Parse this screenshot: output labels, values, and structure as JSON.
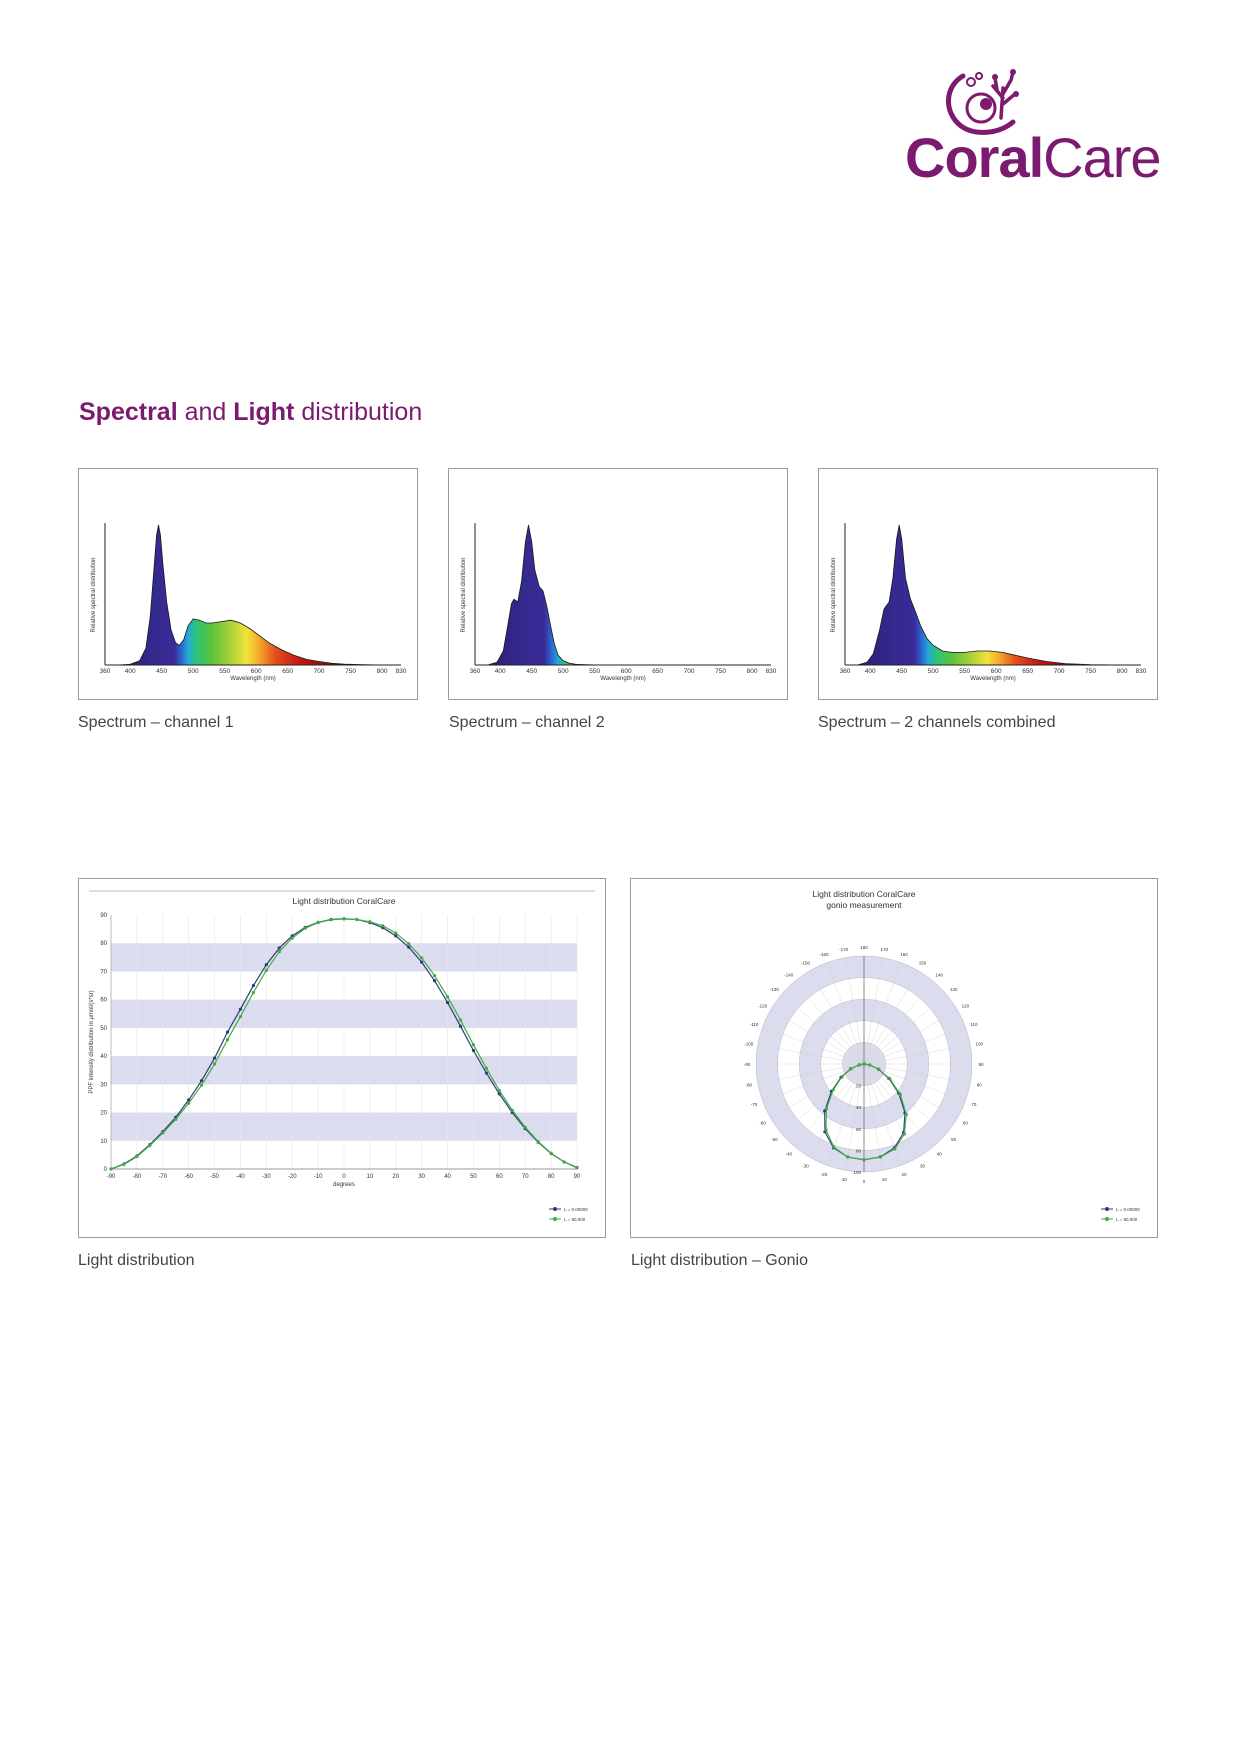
{
  "brand": {
    "name_bold": "Coral",
    "name_light": "Care"
  },
  "section": {
    "title_part1": "Spectral",
    "title_part2": " and ",
    "title_part3": "Light",
    "title_part4": " distribution"
  },
  "colors": {
    "brand_purple": "#7b1a6e",
    "spectrum_blue": "#3a2a8c",
    "band": "#dcdcef",
    "curve_blue": "#2d3c7a",
    "curve_green": "#3fae3f"
  },
  "chart_data": [
    {
      "type": "area",
      "caption": "Spectrum – channel 1",
      "ylabel": "Relative spectral distribution",
      "xlabel": "Wavelength (nm)",
      "xticks": [
        "360",
        "400",
        "450",
        "500",
        "550",
        "600",
        "650",
        "700",
        "750",
        "800",
        "830"
      ],
      "xlim": [
        360,
        830
      ],
      "ylim": [
        0,
        1
      ],
      "x": [
        380,
        400,
        415,
        425,
        432,
        438,
        442,
        445,
        448,
        452,
        458,
        465,
        472,
        478,
        485,
        492,
        500,
        510,
        520,
        530,
        545,
        560,
        575,
        590,
        605,
        620,
        640,
        660,
        680,
        700,
        720,
        740,
        770,
        800
      ],
      "values": [
        0,
        0.005,
        0.03,
        0.12,
        0.35,
        0.7,
        0.93,
        1.0,
        0.93,
        0.72,
        0.45,
        0.25,
        0.16,
        0.14,
        0.18,
        0.28,
        0.33,
        0.32,
        0.3,
        0.3,
        0.31,
        0.32,
        0.3,
        0.26,
        0.21,
        0.16,
        0.11,
        0.07,
        0.04,
        0.025,
        0.012,
        0.006,
        0.002,
        0
      ]
    },
    {
      "type": "area",
      "caption": "Spectrum – channel 2",
      "ylabel": "Relative spectral distribution",
      "xlabel": "Wavelength (nm)",
      "xticks": [
        "360",
        "400",
        "450",
        "500",
        "550",
        "600",
        "650",
        "700",
        "750",
        "800",
        "830"
      ],
      "xlim": [
        360,
        830
      ],
      "ylim": [
        0,
        1
      ],
      "x": [
        380,
        395,
        405,
        412,
        418,
        422,
        428,
        434,
        440,
        445,
        450,
        455,
        462,
        468,
        474,
        480,
        486,
        492,
        500,
        510,
        520,
        535,
        550,
        570
      ],
      "values": [
        0,
        0.02,
        0.1,
        0.28,
        0.44,
        0.47,
        0.45,
        0.6,
        0.88,
        1.0,
        0.88,
        0.68,
        0.56,
        0.53,
        0.42,
        0.28,
        0.15,
        0.07,
        0.03,
        0.012,
        0.005,
        0.002,
        0.001,
        0
      ]
    },
    {
      "type": "area",
      "caption": "Spectrum – 2 channels combined",
      "ylabel": "Relative spectral distribution",
      "xlabel": "Wavelength (nm)",
      "xticks": [
        "360",
        "400",
        "450",
        "500",
        "550",
        "600",
        "650",
        "700",
        "750",
        "800",
        "830"
      ],
      "xlim": [
        360,
        830
      ],
      "ylim": [
        0,
        1
      ],
      "x": [
        380,
        395,
        405,
        415,
        422,
        430,
        436,
        442,
        446,
        450,
        456,
        464,
        472,
        480,
        490,
        500,
        515,
        530,
        550,
        570,
        590,
        610,
        630,
        650,
        680,
        710,
        750,
        800
      ],
      "values": [
        0,
        0.02,
        0.08,
        0.25,
        0.4,
        0.45,
        0.62,
        0.9,
        1.0,
        0.9,
        0.62,
        0.47,
        0.38,
        0.28,
        0.19,
        0.14,
        0.1,
        0.09,
        0.09,
        0.1,
        0.1,
        0.09,
        0.07,
        0.05,
        0.025,
        0.01,
        0.003,
        0
      ]
    },
    {
      "type": "line",
      "caption": "Light distribution",
      "title": "Light distribution CoralCare",
      "xlabel": "degrees",
      "ylabel": "PPF intensity distribution in µmol/(s*sr)",
      "xlim": [
        -90,
        90
      ],
      "ylim": [
        0,
        90
      ],
      "xticks": [
        "-90",
        "-80",
        "-70",
        "-60",
        "-50",
        "-40",
        "-30",
        "-20",
        "-10",
        "0",
        "10",
        "20",
        "30",
        "40",
        "50",
        "60",
        "70",
        "80",
        "90"
      ],
      "yticks": [
        "0",
        "10",
        "20",
        "30",
        "40",
        "50",
        "60",
        "70",
        "80",
        "90"
      ],
      "legend": [
        "L = 0.00000",
        "L = 90.000"
      ],
      "x": [
        -90,
        -85,
        -80,
        -75,
        -70,
        -65,
        -60,
        -55,
        -50,
        -45,
        -40,
        -35,
        -30,
        -25,
        -20,
        -15,
        -10,
        -5,
        0,
        5,
        10,
        15,
        20,
        25,
        30,
        35,
        40,
        45,
        50,
        55,
        60,
        65,
        70,
        75,
        80,
        85,
        90
      ],
      "series": [
        {
          "name": "L = 0.00000",
          "values": [
            0,
            1.8,
            4.6,
            8.6,
            13.2,
            18.3,
            24.5,
            31.3,
            39.3,
            48.5,
            56.6,
            65,
            72.4,
            78.3,
            82.6,
            85.6,
            87.4,
            88.4,
            88.7,
            88.4,
            87.3,
            85.5,
            82.6,
            78.6,
            73.3,
            66.7,
            59,
            50.6,
            42,
            34,
            26.6,
            20,
            14.3,
            9.5,
            5.5,
            2.5,
            0.5
          ]
        },
        {
          "name": "L = 90.000",
          "values": [
            0,
            1.6,
            4.4,
            8.3,
            12.8,
            17.6,
            23.3,
            29.7,
            37.2,
            45.8,
            54,
            62.5,
            70.4,
            77,
            81.8,
            85.3,
            87.3,
            88.3,
            88.6,
            88.4,
            87.6,
            86.2,
            83.6,
            79.8,
            74.8,
            68.5,
            61,
            52.8,
            44,
            35.7,
            27.8,
            20.8,
            14.8,
            9.7,
            5.6,
            2.5,
            0.4
          ]
        }
      ]
    },
    {
      "type": "scatter",
      "caption": "Light distribution – Gonio",
      "title": "Light distribution CoralCare",
      "subtitle": "gonio measurement",
      "radial_ticks": [
        "20",
        "40",
        "60",
        "80",
        "100"
      ],
      "angle_labels": [
        "180",
        "-170",
        "170",
        "-160",
        "160",
        "-150",
        "150",
        "-140",
        "140",
        "-130",
        "130",
        "-120",
        "120",
        "-110",
        "110",
        "-100",
        "100",
        "-90",
        "90",
        "-80",
        "80",
        "-70",
        "70",
        "-60",
        "60",
        "-50",
        "50",
        "-40",
        "40",
        "-30",
        "30",
        "-20",
        "20",
        "-10",
        "10",
        "0"
      ],
      "legend": [
        "L = 0.00000",
        "L = 90.000"
      ],
      "angles": [
        -90,
        -80,
        -70,
        -60,
        -50,
        -40,
        -30,
        -20,
        -10,
        0,
        10,
        20,
        30,
        40,
        50,
        60,
        70,
        80,
        90
      ],
      "series": [
        {
          "name": "L = 0.00000",
          "values": [
            0,
            4.6,
            13.2,
            24.5,
            39.3,
            56.6,
            72.4,
            82.6,
            87.4,
            88.7,
            87.3,
            82.6,
            73.3,
            59,
            42,
            26.6,
            14.3,
            5.5,
            0.5
          ]
        },
        {
          "name": "L = 90.000",
          "values": [
            0,
            4.4,
            12.8,
            23.3,
            37.2,
            54,
            70.4,
            81.8,
            87.3,
            88.6,
            87.6,
            83.6,
            74.8,
            61,
            44,
            27.8,
            14.8,
            5.6,
            0.4
          ]
        }
      ]
    }
  ]
}
